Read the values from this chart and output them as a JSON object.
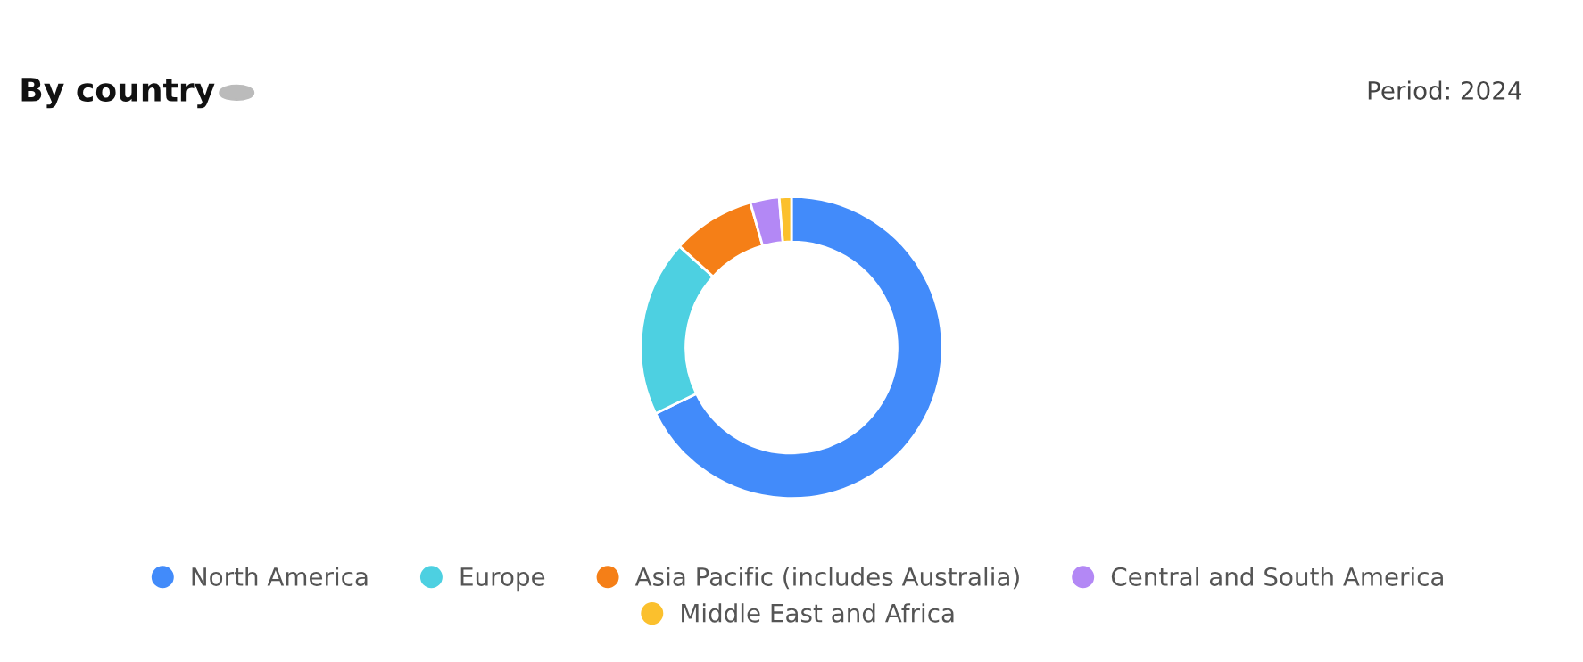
{
  "chart_data": {
    "type": "donut",
    "title": "By country",
    "subtitle": "Period: 2024",
    "categories": [
      "North America",
      "Europe",
      "Asia Pacific (includes Australia)",
      "Central and South America",
      "Middle East and Africa"
    ],
    "values": [
      67.8,
      18.9,
      8.9,
      3.1,
      1.3
    ],
    "colors": [
      "#428bfa",
      "#4dd0e1",
      "#f57f17",
      "#b388f5",
      "#fbc02d"
    ],
    "legend": "bottom"
  }
}
